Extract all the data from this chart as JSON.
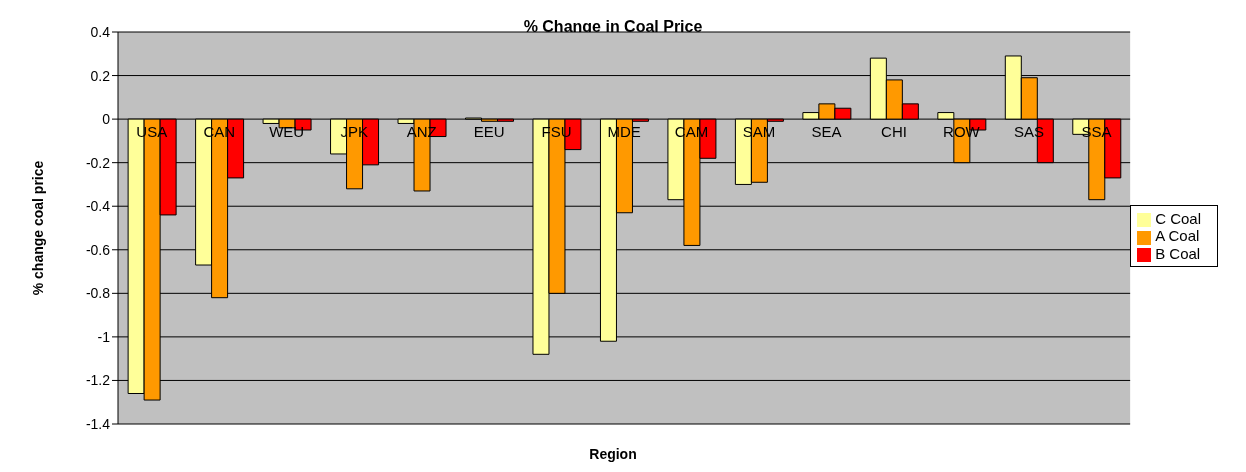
{
  "chart_data": {
    "type": "bar",
    "title": "% Change in Coal Price",
    "xlabel": "Region",
    "ylabel": "% change coal price",
    "categories": [
      "USA",
      "CAN",
      "WEU",
      "JPK",
      "ANZ",
      "EEU",
      "FSU",
      "MDE",
      "CAM",
      "SAM",
      "SEA",
      "CHI",
      "ROW",
      "SAS",
      "SSA"
    ],
    "series": [
      {
        "name": "C Coal",
        "color": "#ffff99",
        "values": [
          -1.26,
          -0.67,
          -0.02,
          -0.16,
          -0.02,
          0.005,
          -1.08,
          -1.02,
          -0.37,
          -0.3,
          0.03,
          0.28,
          0.03,
          0.29,
          -0.07
        ]
      },
      {
        "name": "A Coal",
        "color": "#ff9900",
        "values": [
          -1.29,
          -0.82,
          -0.04,
          -0.32,
          -0.33,
          -0.01,
          -0.8,
          -0.43,
          -0.58,
          -0.29,
          0.07,
          0.18,
          -0.2,
          0.19,
          -0.37
        ]
      },
      {
        "name": "B Coal",
        "color": "#ff0000",
        "values": [
          -0.44,
          -0.27,
          -0.05,
          -0.21,
          -0.08,
          -0.01,
          -0.14,
          -0.01,
          -0.18,
          -0.01,
          0.05,
          0.07,
          -0.05,
          -0.2,
          -0.27
        ]
      }
    ],
    "ylim": [
      -1.4,
      0.4
    ],
    "yticks": [
      -1.4,
      -1.2,
      -1,
      -0.8,
      -0.6,
      -0.4,
      -0.2,
      0,
      0.2,
      0.4
    ],
    "grid": "y",
    "legend": "right"
  }
}
